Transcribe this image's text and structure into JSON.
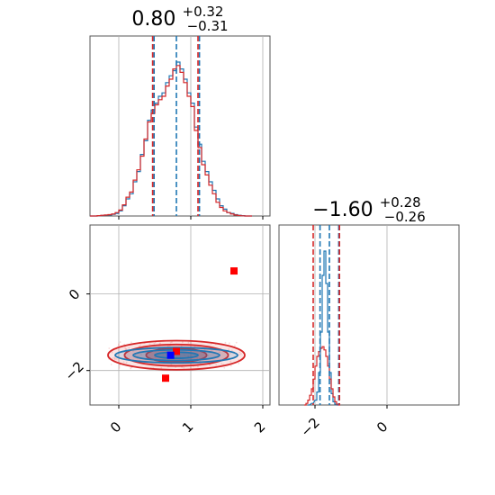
{
  "chart_data": [
    {
      "panel": "top-left",
      "type": "histogram",
      "title": {
        "value": "0.80",
        "plus": "+0.32",
        "minus": "−0.31"
      },
      "xlim": [
        -0.4,
        2.1
      ],
      "xticks": [
        0,
        1,
        2
      ],
      "yticks": [],
      "grid": true,
      "series": [
        {
          "color": "#1f77b4",
          "bins": [
            [
              -0.4,
              0
            ],
            [
              -0.35,
              0
            ],
            [
              -0.3,
              0.002
            ],
            [
              -0.25,
              0.003
            ],
            [
              -0.2,
              0.005
            ],
            [
              -0.15,
              0.006
            ],
            [
              -0.1,
              0.01
            ],
            [
              -0.05,
              0.015
            ],
            [
              0,
              0.03
            ],
            [
              0.05,
              0.06
            ],
            [
              0.1,
              0.1
            ],
            [
              0.15,
              0.13
            ],
            [
              0.2,
              0.2
            ],
            [
              0.25,
              0.26
            ],
            [
              0.3,
              0.36
            ],
            [
              0.35,
              0.44
            ],
            [
              0.4,
              0.56
            ],
            [
              0.45,
              0.62
            ],
            [
              0.5,
              0.66
            ],
            [
              0.55,
              0.7
            ],
            [
              0.6,
              0.72
            ],
            [
              0.65,
              0.78
            ],
            [
              0.7,
              0.82
            ],
            [
              0.75,
              0.85
            ],
            [
              0.8,
              0.9
            ],
            [
              0.85,
              0.86
            ],
            [
              0.9,
              0.8
            ],
            [
              0.95,
              0.72
            ],
            [
              1.0,
              0.66
            ],
            [
              1.05,
              0.52
            ],
            [
              1.1,
              0.42
            ],
            [
              1.15,
              0.32
            ],
            [
              1.2,
              0.26
            ],
            [
              1.25,
              0.2
            ],
            [
              1.3,
              0.15
            ],
            [
              1.35,
              0.1
            ],
            [
              1.4,
              0.06
            ],
            [
              1.45,
              0.04
            ],
            [
              1.5,
              0.02
            ],
            [
              1.55,
              0.015
            ],
            [
              1.6,
              0.008
            ],
            [
              1.65,
              0.004
            ],
            [
              1.7,
              0.002
            ],
            [
              1.75,
              0
            ],
            [
              1.8,
              0
            ]
          ],
          "quantile_lines": [
            0.49,
            0.8,
            1.12
          ]
        },
        {
          "color": "#d62728",
          "bins": [
            [
              -0.4,
              0
            ],
            [
              -0.35,
              0
            ],
            [
              -0.3,
              0.002
            ],
            [
              -0.25,
              0.004
            ],
            [
              -0.2,
              0.006
            ],
            [
              -0.15,
              0.008
            ],
            [
              -0.1,
              0.012
            ],
            [
              -0.05,
              0.02
            ],
            [
              0,
              0.035
            ],
            [
              0.05,
              0.065
            ],
            [
              0.1,
              0.11
            ],
            [
              0.15,
              0.14
            ],
            [
              0.2,
              0.21
            ],
            [
              0.25,
              0.27
            ],
            [
              0.3,
              0.35
            ],
            [
              0.35,
              0.45
            ],
            [
              0.4,
              0.55
            ],
            [
              0.45,
              0.6
            ],
            [
              0.5,
              0.65
            ],
            [
              0.55,
              0.68
            ],
            [
              0.6,
              0.7
            ],
            [
              0.65,
              0.76
            ],
            [
              0.7,
              0.8
            ],
            [
              0.75,
              0.86
            ],
            [
              0.8,
              0.88
            ],
            [
              0.85,
              0.84
            ],
            [
              0.9,
              0.78
            ],
            [
              0.95,
              0.7
            ],
            [
              1.0,
              0.64
            ],
            [
              1.05,
              0.5
            ],
            [
              1.1,
              0.4
            ],
            [
              1.15,
              0.3
            ],
            [
              1.2,
              0.24
            ],
            [
              1.25,
              0.18
            ],
            [
              1.3,
              0.13
            ],
            [
              1.35,
              0.08
            ],
            [
              1.4,
              0.05
            ],
            [
              1.45,
              0.03
            ],
            [
              1.5,
              0.02
            ],
            [
              1.55,
              0.012
            ],
            [
              1.6,
              0.006
            ],
            [
              1.65,
              0.003
            ],
            [
              1.7,
              0.001
            ],
            [
              1.75,
              0
            ],
            [
              1.8,
              0
            ]
          ],
          "quantile_lines": [
            0.47,
            1.1
          ]
        }
      ]
    },
    {
      "panel": "bottom-left",
      "type": "scatter",
      "xlim": [
        -0.4,
        2.1
      ],
      "ylim": [
        -2.9,
        1.8
      ],
      "xticks": [
        0,
        1,
        2
      ],
      "yticks": [
        0,
        -2
      ],
      "grid": true,
      "contours": [
        {
          "color": "#d62728",
          "center": [
            0.8,
            -1.6
          ],
          "levels": [
            [
              0.95,
              0.38
            ],
            [
              0.72,
              0.28
            ],
            [
              0.42,
              0.18
            ]
          ]
        },
        {
          "color": "#1f77b4",
          "center": [
            0.8,
            -1.6
          ],
          "levels": [
            [
              0.85,
              0.2
            ],
            [
              0.6,
              0.14
            ],
            [
              0.3,
              0.08
            ]
          ]
        }
      ],
      "markers": [
        {
          "color": "#ff0000",
          "x": 1.6,
          "y": 0.6
        },
        {
          "color": "#ff0000",
          "x": 0.8,
          "y": -1.5
        },
        {
          "color": "#ff0000",
          "x": 0.65,
          "y": -2.2
        },
        {
          "color": "#0000ff",
          "x": 0.72,
          "y": -1.6
        }
      ]
    },
    {
      "panel": "bottom-right",
      "type": "histogram",
      "title": {
        "value": "−1.60",
        "plus": "+0.28",
        "minus": "−0.26"
      },
      "xlim": [
        -3.0,
        2.0
      ],
      "xticks": [
        -2,
        0
      ],
      "yticks": [],
      "grid": true,
      "series": [
        {
          "color": "#1f77b4",
          "bins": [
            [
              -2.2,
              0
            ],
            [
              -2.1,
              0.01
            ],
            [
              -2.0,
              0.03
            ],
            [
              -1.95,
              0.08
            ],
            [
              -1.9,
              0.2
            ],
            [
              -1.85,
              0.45
            ],
            [
              -1.8,
              0.8
            ],
            [
              -1.75,
              0.95
            ],
            [
              -1.7,
              0.75
            ],
            [
              -1.65,
              0.45
            ],
            [
              -1.6,
              0.2
            ],
            [
              -1.55,
              0.07
            ],
            [
              -1.5,
              0.02
            ],
            [
              -1.45,
              0.005
            ],
            [
              -1.4,
              0
            ]
          ],
          "quantile_lines": [
            -1.86,
            -1.6,
            -1.34
          ]
        },
        {
          "color": "#d62728",
          "bins": [
            [
              -2.3,
              0
            ],
            [
              -2.25,
              0.01
            ],
            [
              -2.2,
              0.03
            ],
            [
              -2.15,
              0.06
            ],
            [
              -2.1,
              0.1
            ],
            [
              -2.05,
              0.16
            ],
            [
              -2.0,
              0.24
            ],
            [
              -1.95,
              0.3
            ],
            [
              -1.9,
              0.33
            ],
            [
              -1.85,
              0.35
            ],
            [
              -1.8,
              0.36
            ],
            [
              -1.75,
              0.34
            ],
            [
              -1.7,
              0.3
            ],
            [
              -1.65,
              0.24
            ],
            [
              -1.6,
              0.16
            ],
            [
              -1.55,
              0.1
            ],
            [
              -1.5,
              0.05
            ],
            [
              -1.45,
              0.02
            ],
            [
              -1.4,
              0.005
            ],
            [
              -1.35,
              0
            ]
          ],
          "quantile_lines": [
            -2.05,
            -1.32
          ]
        }
      ]
    }
  ],
  "tick_labels": {
    "x_left": [
      "0",
      "1",
      "2"
    ],
    "y_left": [
      "0",
      "−2"
    ],
    "x_right": [
      "−2",
      "0"
    ]
  }
}
